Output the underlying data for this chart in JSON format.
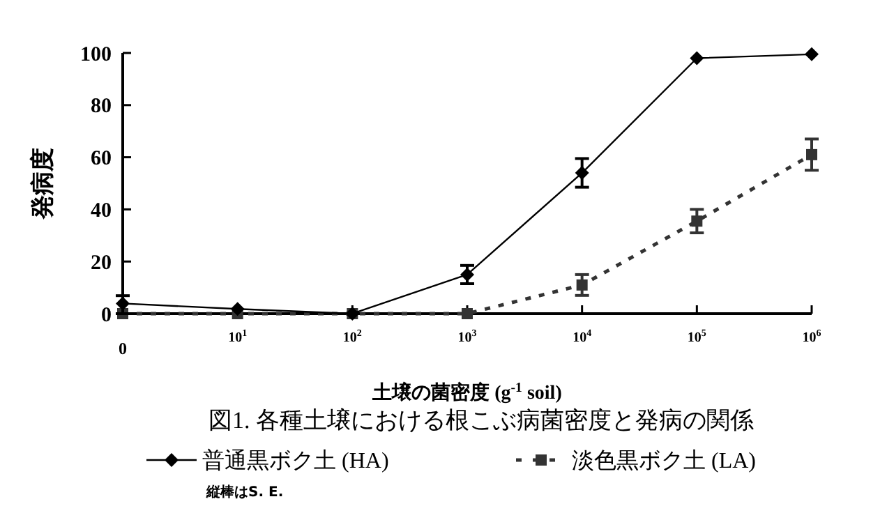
{
  "chart_data": {
    "type": "line",
    "title": "図1. 各種土壌における根こぶ病菌密度と発病の関係",
    "xlabel": "土壌の菌密度 (g$^{-1}$ soil)",
    "ylabel": "発病度",
    "categories": [
      "0",
      "10$^{1}$",
      "10$^{2}$",
      "10$^{3}$",
      "10$^{4}$",
      "10$^{5}$",
      "10$^{6}$"
    ],
    "series": [
      {
        "name": "普通黒ボク土 (HA)",
        "color": "#000000",
        "marker": "diamond",
        "line_style": "solid",
        "values": [
          3.9,
          1.8,
          0,
          15,
          54,
          98,
          99.5
        ],
        "errors": [
          [
            3.9,
            3
          ],
          null,
          null,
          3.5,
          5.5,
          null,
          null
        ]
      },
      {
        "name": "淡色黒ボク土 (LA)",
        "color": "#333333",
        "marker": "square",
        "line_style": "dashed",
        "values": [
          0,
          0,
          0,
          0,
          11,
          35.5,
          61
        ],
        "errors": [
          null,
          null,
          null,
          null,
          4,
          4.5,
          6
        ]
      }
    ],
    "ylim": [
      0,
      100
    ],
    "yticks": [
      0,
      20,
      40,
      60,
      80,
      100
    ],
    "grid": false,
    "legend": "bottom",
    "annotations": [
      "縦棒はS. E."
    ]
  }
}
